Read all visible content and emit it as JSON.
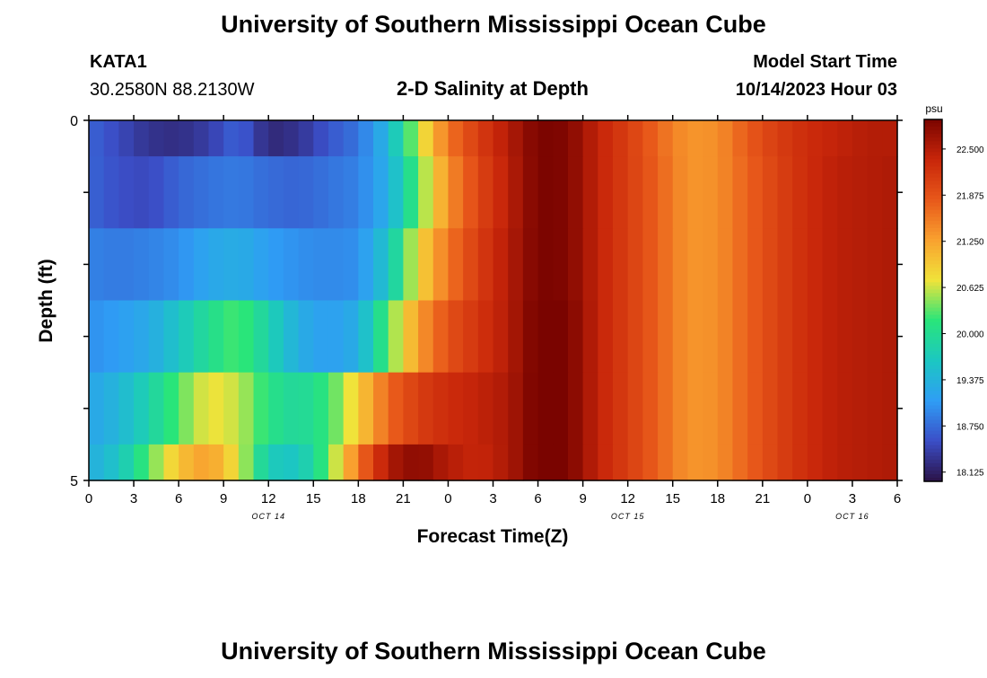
{
  "header": {
    "title": "University of Southern Mississippi Ocean Cube",
    "station": "KATA1",
    "coords": "30.2580N  88.2130W",
    "subtitle": "2-D Salinity at Depth",
    "start_label": "Model Start Time",
    "start_value": "10/14/2023 Hour 03",
    "repeat_title": "University of Southern Mississippi Ocean Cube"
  },
  "chart_data": {
    "type": "heatmap",
    "title": "2-D Salinity at Depth",
    "xlabel": "Forecast Time(Z)",
    "ylabel": "Depth (ft)",
    "x_range_hours": [
      0,
      54
    ],
    "y_range": [
      0,
      5
    ],
    "y_ticks": [
      "0",
      "5"
    ],
    "x_tick_labels": [
      "0",
      "3",
      "6",
      "9",
      "12",
      "15",
      "18",
      "21",
      "0",
      "3",
      "6",
      "9",
      "12",
      "15",
      "18",
      "21",
      "0",
      "3",
      "6"
    ],
    "date_labels": [
      {
        "text": "OCT 14",
        "tick_index": 4
      },
      {
        "text": "OCT 15",
        "tick_index": 12
      },
      {
        "text": "OCT 16",
        "tick_index": 17
      }
    ],
    "colorbar": {
      "unit": "psu",
      "min": 18.0,
      "max": 22.9,
      "ticks": [
        "22.500",
        "21.875",
        "21.250",
        "20.625",
        "20.000",
        "19.375",
        "18.750",
        "18.125"
      ],
      "tick_values": [
        22.5,
        21.875,
        21.25,
        20.625,
        20.0,
        19.375,
        18.75,
        18.125
      ]
    },
    "layer_bounds": [
      0,
      0.5,
      1.5,
      2.5,
      3.5,
      4.5,
      5
    ],
    "time_keys": [
      0,
      2,
      4,
      6,
      8,
      10,
      12,
      14,
      16,
      18,
      20,
      22,
      24,
      26,
      28,
      30,
      32,
      34,
      36,
      38,
      40,
      42,
      44,
      46,
      48,
      50,
      52,
      54
    ],
    "layers": [
      {
        "depth_range": [
          0,
          0.5
        ],
        "values": [
          18.7,
          18.5,
          18.3,
          18.25,
          18.4,
          18.7,
          18.2,
          18.3,
          18.6,
          18.8,
          19.4,
          20.6,
          21.6,
          22.1,
          22.5,
          22.9,
          22.85,
          22.4,
          22.1,
          21.7,
          21.35,
          21.4,
          21.8,
          22.1,
          22.3,
          22.4,
          22.5,
          22.5
        ]
      },
      {
        "depth_range": [
          0.5,
          1.5
        ],
        "values": [
          18.7,
          18.55,
          18.5,
          18.7,
          18.8,
          18.85,
          18.75,
          18.7,
          18.8,
          18.9,
          19.3,
          20.3,
          21.4,
          22.0,
          22.45,
          22.9,
          22.85,
          22.4,
          22.1,
          21.75,
          21.35,
          21.4,
          21.75,
          22.05,
          22.3,
          22.45,
          22.5,
          22.55
        ]
      },
      {
        "depth_range": [
          1.5,
          2.5
        ],
        "values": [
          18.9,
          18.85,
          18.9,
          19.0,
          19.2,
          19.3,
          19.1,
          19.0,
          18.95,
          19.0,
          19.6,
          20.8,
          21.6,
          22.1,
          22.5,
          22.9,
          22.85,
          22.4,
          22.1,
          21.75,
          21.35,
          21.4,
          21.75,
          22.05,
          22.3,
          22.45,
          22.5,
          22.55
        ]
      },
      {
        "depth_range": [
          2.5,
          3.5
        ],
        "values": [
          19.0,
          19.1,
          19.25,
          19.6,
          20.0,
          20.3,
          19.8,
          19.3,
          19.1,
          19.3,
          20.3,
          21.3,
          21.9,
          22.2,
          22.5,
          22.95,
          22.9,
          22.4,
          22.1,
          21.75,
          21.35,
          21.4,
          21.75,
          22.05,
          22.3,
          22.45,
          22.5,
          22.55
        ]
      },
      {
        "depth_range": [
          3.5,
          4.5
        ],
        "values": [
          19.2,
          19.4,
          19.8,
          20.3,
          20.75,
          20.6,
          20.1,
          19.9,
          20.2,
          20.9,
          21.7,
          22.1,
          22.3,
          22.4,
          22.55,
          22.95,
          22.9,
          22.4,
          22.1,
          21.75,
          21.35,
          21.4,
          21.75,
          22.05,
          22.3,
          22.45,
          22.5,
          22.55
        ]
      },
      {
        "depth_range": [
          4.5,
          5
        ],
        "values": [
          19.3,
          19.6,
          20.3,
          21.0,
          21.3,
          20.7,
          19.7,
          19.6,
          20.3,
          21.6,
          22.55,
          22.8,
          22.5,
          22.35,
          22.55,
          22.95,
          22.9,
          22.4,
          22.1,
          21.75,
          21.35,
          21.4,
          21.75,
          22.05,
          22.3,
          22.45,
          22.5,
          22.55
        ]
      }
    ]
  },
  "colors": {
    "scale": [
      "#2b1247",
      "#3b4ec7",
      "#2f9df5",
      "#1cc7c2",
      "#29e57a",
      "#f0e33a",
      "#f9a12f",
      "#e8581a",
      "#c8260a",
      "#7a0400"
    ]
  }
}
